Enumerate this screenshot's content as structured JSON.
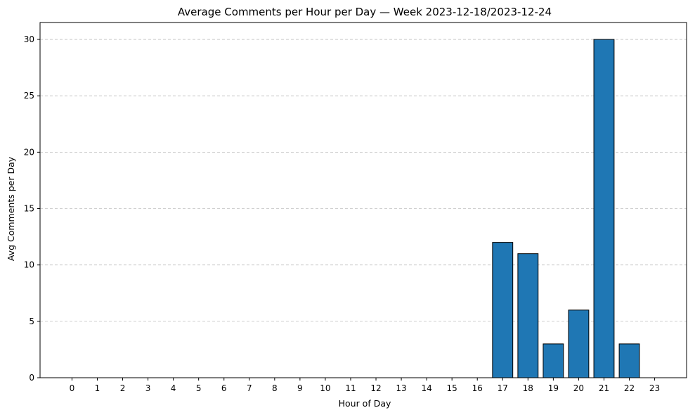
{
  "chart_data": {
    "type": "bar",
    "title": "Average Comments per Hour per Day — Week 2023-12-18/2023-12-24",
    "xlabel": "Hour of Day",
    "ylabel": "Avg Comments per Day",
    "categories": [
      "0",
      "1",
      "2",
      "3",
      "4",
      "5",
      "6",
      "7",
      "8",
      "9",
      "10",
      "11",
      "12",
      "13",
      "14",
      "15",
      "16",
      "17",
      "18",
      "19",
      "20",
      "21",
      "22",
      "23"
    ],
    "values": [
      0,
      0,
      0,
      0,
      0,
      0,
      0,
      0,
      0,
      0,
      0,
      0,
      0,
      0,
      0,
      0,
      0,
      12,
      11,
      3,
      6,
      30,
      3,
      0
    ],
    "ylim": [
      0,
      31.5
    ],
    "yticks": [
      0,
      5,
      10,
      15,
      20,
      25,
      30
    ],
    "grid": "y-dashed",
    "legend": "none",
    "bar_color": "#1f77b4",
    "edge_color": "#000000"
  }
}
